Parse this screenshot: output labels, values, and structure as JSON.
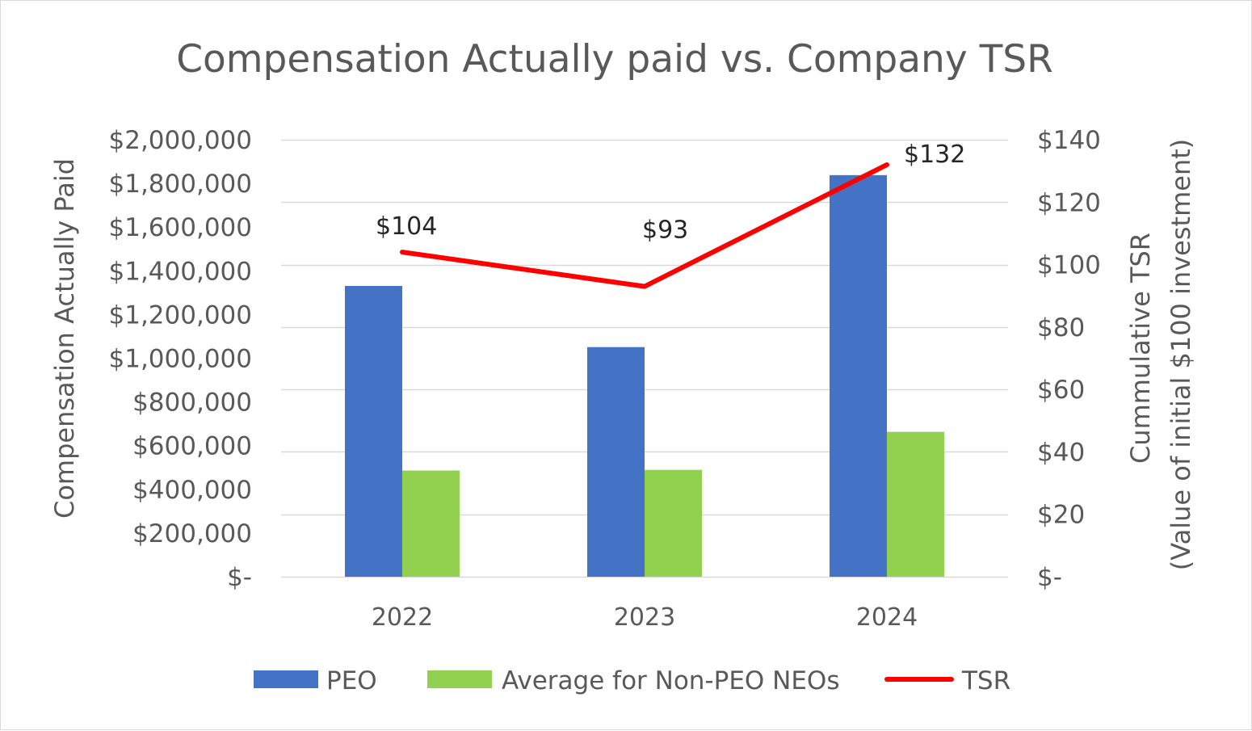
{
  "chart_data": {
    "type": "bar",
    "title": "Compensation Actually paid vs. Company TSR",
    "categories": [
      "2022",
      "2023",
      "2024"
    ],
    "series": [
      {
        "name": "PEO",
        "kind": "bar",
        "axis": "left",
        "color": "#4472C4",
        "values": [
          1331000,
          1051000,
          1838000
        ]
      },
      {
        "name": "Average for Non-PEO NEOs",
        "kind": "bar",
        "axis": "left",
        "color": "#92D050",
        "values": [
          486000,
          489000,
          663000
        ]
      },
      {
        "name": "TSR",
        "kind": "line",
        "axis": "right",
        "color": "#FF0000",
        "values": [
          104,
          93,
          132
        ],
        "data_labels": [
          "$104",
          "$93",
          "$132"
        ]
      }
    ],
    "y_left": {
      "label": "Compensation Actually Paid",
      "ylim": [
        0,
        2000000
      ],
      "ticks": [
        0,
        200000,
        400000,
        600000,
        800000,
        1000000,
        1200000,
        1400000,
        1600000,
        1800000,
        2000000
      ],
      "tick_labels": [
        "$-",
        "$200,000",
        "$400,000",
        "$600,000",
        "$800,000",
        "$1,000,000",
        "$1,200,000",
        "$1,400,000",
        "$1,600,000",
        "$1,800,000",
        "$2,000,000"
      ]
    },
    "y_right": {
      "label_line1": "Cummulative TSR",
      "label_line2": "(Value of initial $100 investment)",
      "ylim": [
        0,
        140
      ],
      "ticks": [
        0,
        20,
        40,
        60,
        80,
        100,
        120,
        140
      ],
      "tick_labels": [
        "$-",
        "$20",
        "$40",
        "$60",
        "$80",
        "$100",
        "$120",
        "$140"
      ]
    },
    "grid": true,
    "legend": {
      "position": "bottom",
      "items": [
        "PEO",
        "Average for Non-PEO NEOs",
        "TSR"
      ]
    }
  }
}
